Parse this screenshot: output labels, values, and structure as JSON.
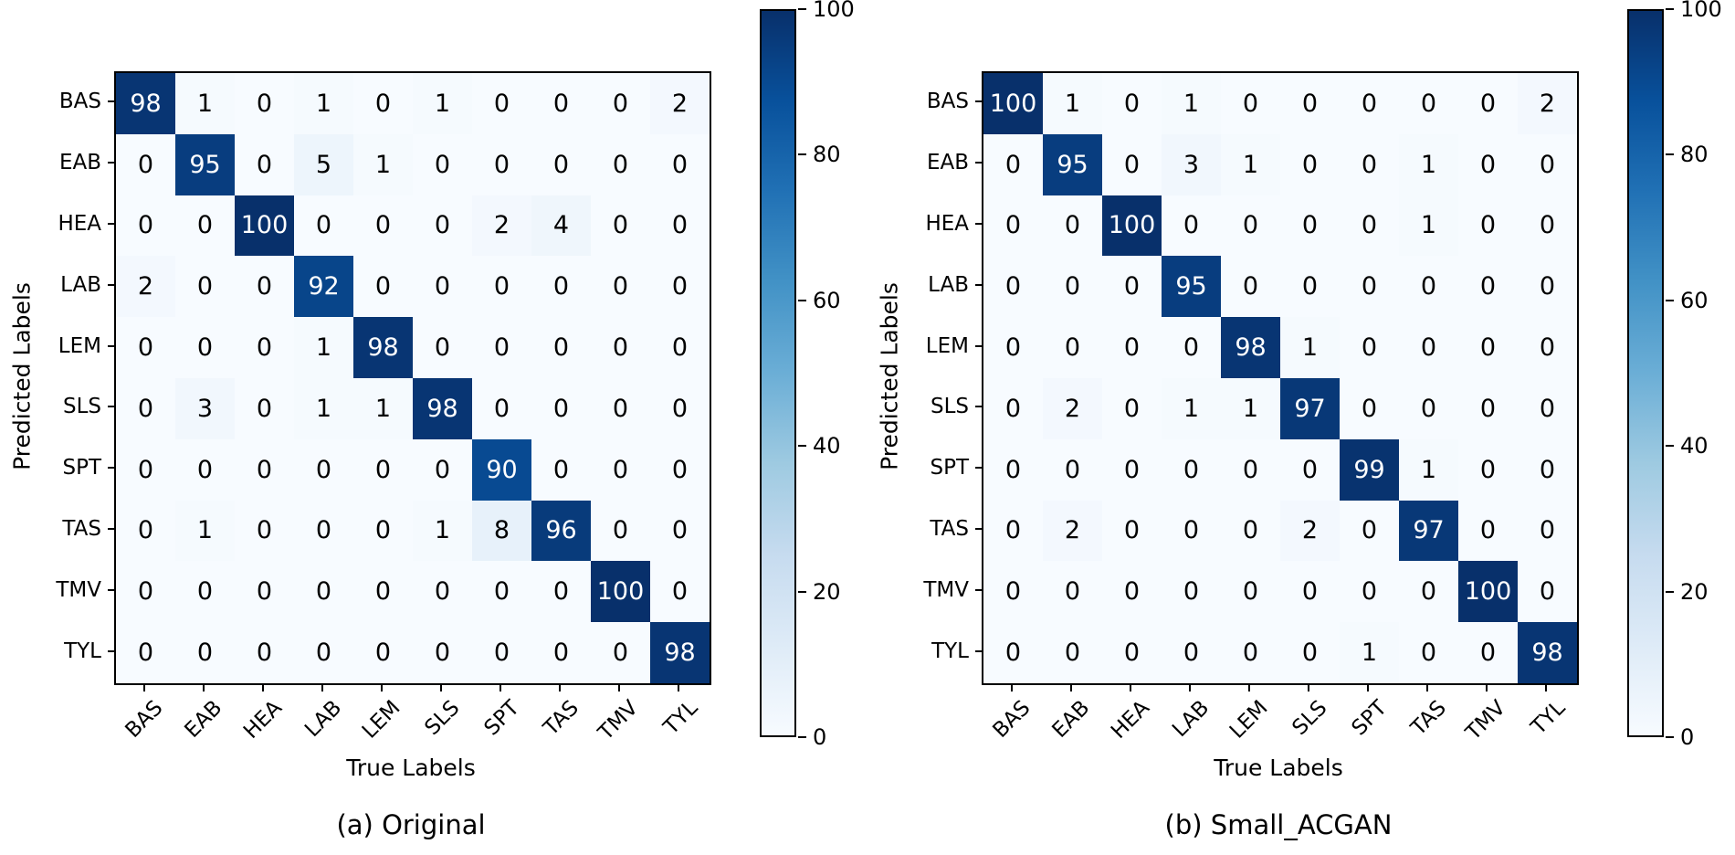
{
  "colors": {
    "background": "#ffffff",
    "axis": "#000000",
    "colormap_min": "#f7fbff",
    "colormap_max": "#08306b",
    "cell_text_light": "#ffffff",
    "cell_text_dark": "#000000"
  },
  "colormap_stops": [
    [
      0.0,
      "#f7fbff"
    ],
    [
      0.125,
      "#deebf7"
    ],
    [
      0.25,
      "#c6dbef"
    ],
    [
      0.375,
      "#9ecae1"
    ],
    [
      0.5,
      "#6baed6"
    ],
    [
      0.625,
      "#4292c6"
    ],
    [
      0.75,
      "#2171b5"
    ],
    [
      0.875,
      "#08519c"
    ],
    [
      1.0,
      "#08306b"
    ]
  ],
  "chart_data": [
    {
      "type": "heatmap",
      "title": "(a) Original",
      "xlabel": "True Labels",
      "ylabel": "Predicted Labels",
      "colormap": "Blues",
      "vmin": 0,
      "vmax": 100,
      "legend_position": "right-colorbar",
      "colorbar_ticks": [
        100,
        80,
        60,
        40,
        20,
        0
      ],
      "x_labels": [
        "BAS",
        "EAB",
        "HEA",
        "LAB",
        "LEM",
        "SLS",
        "SPT",
        "TAS",
        "TMV",
        "TYL"
      ],
      "y_labels": [
        "BAS",
        "EAB",
        "HEA",
        "LAB",
        "LEM",
        "SLS",
        "SPT",
        "TAS",
        "TMV",
        "TYL"
      ],
      "values": [
        [
          98,
          1,
          0,
          1,
          0,
          1,
          0,
          0,
          0,
          2
        ],
        [
          0,
          95,
          0,
          5,
          1,
          0,
          0,
          0,
          0,
          0
        ],
        [
          0,
          0,
          100,
          0,
          0,
          0,
          2,
          4,
          0,
          0
        ],
        [
          2,
          0,
          0,
          92,
          0,
          0,
          0,
          0,
          0,
          0
        ],
        [
          0,
          0,
          0,
          1,
          98,
          0,
          0,
          0,
          0,
          0
        ],
        [
          0,
          3,
          0,
          1,
          1,
          98,
          0,
          0,
          0,
          0
        ],
        [
          0,
          0,
          0,
          0,
          0,
          0,
          90,
          0,
          0,
          0
        ],
        [
          0,
          1,
          0,
          0,
          0,
          1,
          8,
          96,
          0,
          0
        ],
        [
          0,
          0,
          0,
          0,
          0,
          0,
          0,
          0,
          100,
          0
        ],
        [
          0,
          0,
          0,
          0,
          0,
          0,
          0,
          0,
          0,
          98
        ]
      ]
    },
    {
      "type": "heatmap",
      "title": "(b) Small_ACGAN",
      "xlabel": "True Labels",
      "ylabel": "Predicted Labels",
      "colormap": "Blues",
      "vmin": 0,
      "vmax": 100,
      "legend_position": "right-colorbar",
      "colorbar_ticks": [
        100,
        80,
        60,
        40,
        20,
        0
      ],
      "x_labels": [
        "BAS",
        "EAB",
        "HEA",
        "LAB",
        "LEM",
        "SLS",
        "SPT",
        "TAS",
        "TMV",
        "TYL"
      ],
      "y_labels": [
        "BAS",
        "EAB",
        "HEA",
        "LAB",
        "LEM",
        "SLS",
        "SPT",
        "TAS",
        "TMV",
        "TYL"
      ],
      "values": [
        [
          100,
          1,
          0,
          1,
          0,
          0,
          0,
          0,
          0,
          2
        ],
        [
          0,
          95,
          0,
          3,
          1,
          0,
          0,
          1,
          0,
          0
        ],
        [
          0,
          0,
          100,
          0,
          0,
          0,
          0,
          1,
          0,
          0
        ],
        [
          0,
          0,
          0,
          95,
          0,
          0,
          0,
          0,
          0,
          0
        ],
        [
          0,
          0,
          0,
          0,
          98,
          1,
          0,
          0,
          0,
          0
        ],
        [
          0,
          2,
          0,
          1,
          1,
          97,
          0,
          0,
          0,
          0
        ],
        [
          0,
          0,
          0,
          0,
          0,
          0,
          99,
          1,
          0,
          0
        ],
        [
          0,
          2,
          0,
          0,
          0,
          2,
          0,
          97,
          0,
          0
        ],
        [
          0,
          0,
          0,
          0,
          0,
          0,
          0,
          0,
          100,
          0
        ],
        [
          0,
          0,
          0,
          0,
          0,
          0,
          1,
          0,
          0,
          98
        ]
      ]
    }
  ]
}
